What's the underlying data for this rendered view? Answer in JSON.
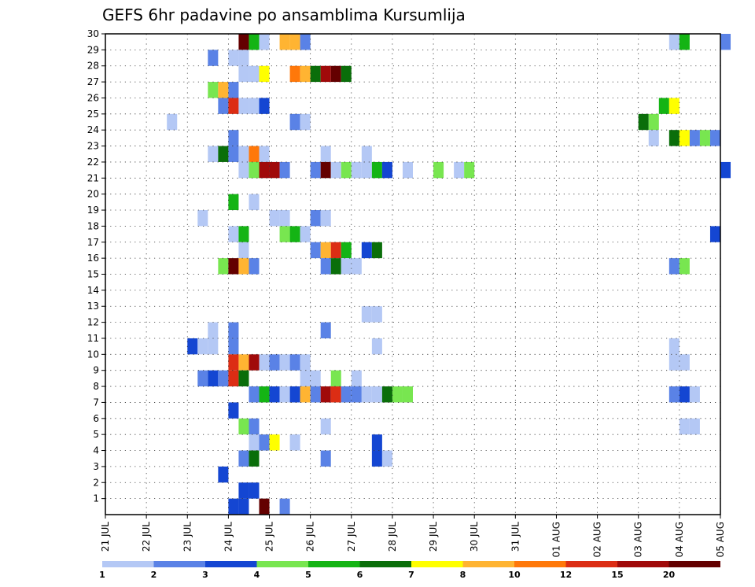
{
  "chart_data": {
    "type": "heatmap",
    "title": "GEFS 6hr padavine po ansamblima Kursumlija",
    "xlabel": "",
    "ylabel": "",
    "x_tick_labels": [
      "21 JUL",
      "22 JUL",
      "23 JUL",
      "24 JUL",
      "25 JUL",
      "26 JUL",
      "27 JUL",
      "28 JUL",
      "29 JUL",
      "30 JUL",
      "31 JUL",
      "01 AUG",
      "02 AUG",
      "03 AUG",
      "04 AUG",
      "05 AUG"
    ],
    "y_tick_labels": [
      "1",
      "2",
      "3",
      "4",
      "5",
      "6",
      "7",
      "8",
      "9",
      "10",
      "11",
      "12",
      "13",
      "14",
      "15",
      "16",
      "17",
      "18",
      "19",
      "20",
      "21",
      "22",
      "23",
      "24",
      "25",
      "26",
      "27",
      "28",
      "29",
      "30"
    ],
    "ylim": [
      0,
      30
    ],
    "x_range_days": [
      0,
      15
    ],
    "grid": "dotted",
    "colorbar": {
      "labels": [
        "1",
        "2",
        "3",
        "4",
        "5",
        "6",
        "7",
        "8",
        "10",
        "12",
        "15",
        "20"
      ],
      "colors": [
        "#b4c8f5",
        "#5a82e6",
        "#1446d2",
        "#78e650",
        "#14b414",
        "#0a6e0a",
        "#ffff00",
        "#ffb432",
        "#ff780a",
        "#dc2d14",
        "#a00a0a",
        "#640000"
      ]
    },
    "cells": [
      {
        "t": 13,
        "m": 29,
        "c": 11
      },
      {
        "t": 14,
        "m": 29,
        "c": 4
      },
      {
        "t": 15,
        "m": 29,
        "c": 0
      },
      {
        "t": 17,
        "m": 29,
        "c": 7
      },
      {
        "t": 18,
        "m": 29,
        "c": 7
      },
      {
        "t": 19,
        "m": 29,
        "c": 1
      },
      {
        "t": 55,
        "m": 29,
        "c": 0
      },
      {
        "t": 56,
        "m": 29,
        "c": 4
      },
      {
        "t": 60,
        "m": 29,
        "c": 1
      },
      {
        "t": 10,
        "m": 28,
        "c": 1
      },
      {
        "t": 12,
        "m": 28,
        "c": 0
      },
      {
        "t": 13,
        "m": 28,
        "c": 0
      },
      {
        "t": 13,
        "m": 27,
        "c": 0
      },
      {
        "t": 14,
        "m": 27,
        "c": 0
      },
      {
        "t": 15,
        "m": 27,
        "c": 6
      },
      {
        "t": 18,
        "m": 27,
        "c": 8
      },
      {
        "t": 19,
        "m": 27,
        "c": 7
      },
      {
        "t": 20,
        "m": 27,
        "c": 5
      },
      {
        "t": 21,
        "m": 27,
        "c": 10
      },
      {
        "t": 22,
        "m": 27,
        "c": 11
      },
      {
        "t": 23,
        "m": 27,
        "c": 5
      },
      {
        "t": 10,
        "m": 26,
        "c": 3
      },
      {
        "t": 11,
        "m": 26,
        "c": 7
      },
      {
        "t": 12,
        "m": 26,
        "c": 1
      },
      {
        "t": 11,
        "m": 25,
        "c": 1
      },
      {
        "t": 12,
        "m": 25,
        "c": 9
      },
      {
        "t": 13,
        "m": 25,
        "c": 0
      },
      {
        "t": 14,
        "m": 25,
        "c": 0
      },
      {
        "t": 15,
        "m": 25,
        "c": 2
      },
      {
        "t": 54,
        "m": 25,
        "c": 4
      },
      {
        "t": 55,
        "m": 25,
        "c": 6
      },
      {
        "t": 6,
        "m": 24,
        "c": 0
      },
      {
        "t": 18,
        "m": 24,
        "c": 1
      },
      {
        "t": 19,
        "m": 24,
        "c": 0
      },
      {
        "t": 52,
        "m": 24,
        "c": 5
      },
      {
        "t": 53,
        "m": 24,
        "c": 3
      },
      {
        "t": 12,
        "m": 23,
        "c": 1
      },
      {
        "t": 53,
        "m": 23,
        "c": 0
      },
      {
        "t": 55,
        "m": 23,
        "c": 5
      },
      {
        "t": 56,
        "m": 23,
        "c": 6
      },
      {
        "t": 57,
        "m": 23,
        "c": 1
      },
      {
        "t": 58,
        "m": 23,
        "c": 3
      },
      {
        "t": 59,
        "m": 23,
        "c": 1
      },
      {
        "t": 10,
        "m": 22,
        "c": 0
      },
      {
        "t": 11,
        "m": 22,
        "c": 5
      },
      {
        "t": 12,
        "m": 22,
        "c": 1
      },
      {
        "t": 13,
        "m": 22,
        "c": 0
      },
      {
        "t": 14,
        "m": 22,
        "c": 8
      },
      {
        "t": 15,
        "m": 22,
        "c": 0
      },
      {
        "t": 21,
        "m": 22,
        "c": 0
      },
      {
        "t": 25,
        "m": 22,
        "c": 0
      },
      {
        "t": 13,
        "m": 21,
        "c": 0
      },
      {
        "t": 14,
        "m": 21,
        "c": 3
      },
      {
        "t": 15,
        "m": 21,
        "c": 10
      },
      {
        "t": 16,
        "m": 21,
        "c": 10
      },
      {
        "t": 17,
        "m": 21,
        "c": 1
      },
      {
        "t": 20,
        "m": 21,
        "c": 1
      },
      {
        "t": 21,
        "m": 21,
        "c": 11
      },
      {
        "t": 22,
        "m": 21,
        "c": 0
      },
      {
        "t": 23,
        "m": 21,
        "c": 3
      },
      {
        "t": 24,
        "m": 21,
        "c": 0
      },
      {
        "t": 25,
        "m": 21,
        "c": 0
      },
      {
        "t": 26,
        "m": 21,
        "c": 4
      },
      {
        "t": 27,
        "m": 21,
        "c": 2
      },
      {
        "t": 29,
        "m": 21,
        "c": 0
      },
      {
        "t": 32,
        "m": 21,
        "c": 3
      },
      {
        "t": 34,
        "m": 21,
        "c": 0
      },
      {
        "t": 35,
        "m": 21,
        "c": 3
      },
      {
        "t": 60,
        "m": 21,
        "c": 2
      },
      {
        "t": 12,
        "m": 19,
        "c": 4
      },
      {
        "t": 14,
        "m": 19,
        "c": 0
      },
      {
        "t": 16,
        "m": 18,
        "c": 0
      },
      {
        "t": 17,
        "m": 18,
        "c": 0
      },
      {
        "t": 9,
        "m": 18,
        "c": 0
      },
      {
        "t": 20,
        "m": 18,
        "c": 1
      },
      {
        "t": 21,
        "m": 18,
        "c": 0
      },
      {
        "t": 12,
        "m": 17,
        "c": 0
      },
      {
        "t": 13,
        "m": 17,
        "c": 4
      },
      {
        "t": 17,
        "m": 17,
        "c": 3
      },
      {
        "t": 18,
        "m": 17,
        "c": 4
      },
      {
        "t": 19,
        "m": 17,
        "c": 0
      },
      {
        "t": 59,
        "m": 17,
        "c": 2
      },
      {
        "t": 13,
        "m": 16,
        "c": 0
      },
      {
        "t": 20,
        "m": 16,
        "c": 1
      },
      {
        "t": 21,
        "m": 16,
        "c": 7
      },
      {
        "t": 22,
        "m": 16,
        "c": 9
      },
      {
        "t": 23,
        "m": 16,
        "c": 4
      },
      {
        "t": 25,
        "m": 16,
        "c": 2
      },
      {
        "t": 26,
        "m": 16,
        "c": 5
      },
      {
        "t": 11,
        "m": 15,
        "c": 3
      },
      {
        "t": 12,
        "m": 15,
        "c": 11
      },
      {
        "t": 13,
        "m": 15,
        "c": 7
      },
      {
        "t": 14,
        "m": 15,
        "c": 1
      },
      {
        "t": 21,
        "m": 15,
        "c": 1
      },
      {
        "t": 22,
        "m": 15,
        "c": 5
      },
      {
        "t": 23,
        "m": 15,
        "c": 0
      },
      {
        "t": 24,
        "m": 15,
        "c": 0
      },
      {
        "t": 55,
        "m": 15,
        "c": 1
      },
      {
        "t": 56,
        "m": 15,
        "c": 3
      },
      {
        "t": 25,
        "m": 12,
        "c": 0
      },
      {
        "t": 26,
        "m": 12,
        "c": 0
      },
      {
        "t": 10,
        "m": 11,
        "c": 0
      },
      {
        "t": 12,
        "m": 11,
        "c": 1
      },
      {
        "t": 21,
        "m": 11,
        "c": 1
      },
      {
        "t": 8,
        "m": 10,
        "c": 2
      },
      {
        "t": 9,
        "m": 10,
        "c": 0
      },
      {
        "t": 10,
        "m": 10,
        "c": 0
      },
      {
        "t": 12,
        "m": 10,
        "c": 1
      },
      {
        "t": 26,
        "m": 10,
        "c": 0
      },
      {
        "t": 55,
        "m": 10,
        "c": 0
      },
      {
        "t": 12,
        "m": 9,
        "c": 9
      },
      {
        "t": 13,
        "m": 9,
        "c": 7
      },
      {
        "t": 14,
        "m": 9,
        "c": 10
      },
      {
        "t": 15,
        "m": 9,
        "c": 0
      },
      {
        "t": 16,
        "m": 9,
        "c": 1
      },
      {
        "t": 17,
        "m": 9,
        "c": 0
      },
      {
        "t": 18,
        "m": 9,
        "c": 1
      },
      {
        "t": 19,
        "m": 9,
        "c": 0
      },
      {
        "t": 55,
        "m": 9,
        "c": 0
      },
      {
        "t": 56,
        "m": 9,
        "c": 0
      },
      {
        "t": 9,
        "m": 8,
        "c": 1
      },
      {
        "t": 10,
        "m": 8,
        "c": 2
      },
      {
        "t": 11,
        "m": 8,
        "c": 1
      },
      {
        "t": 12,
        "m": 8,
        "c": 9
      },
      {
        "t": 13,
        "m": 8,
        "c": 5
      },
      {
        "t": 19,
        "m": 8,
        "c": 0
      },
      {
        "t": 20,
        "m": 8,
        "c": 0
      },
      {
        "t": 22,
        "m": 8,
        "c": 3
      },
      {
        "t": 24,
        "m": 8,
        "c": 0
      },
      {
        "t": 14,
        "m": 7,
        "c": 1
      },
      {
        "t": 15,
        "m": 7,
        "c": 4
      },
      {
        "t": 16,
        "m": 7,
        "c": 2
      },
      {
        "t": 17,
        "m": 7,
        "c": 0
      },
      {
        "t": 18,
        "m": 7,
        "c": 2
      },
      {
        "t": 19,
        "m": 7,
        "c": 7
      },
      {
        "t": 20,
        "m": 7,
        "c": 1
      },
      {
        "t": 21,
        "m": 7,
        "c": 10
      },
      {
        "t": 22,
        "m": 7,
        "c": 9
      },
      {
        "t": 23,
        "m": 7,
        "c": 1
      },
      {
        "t": 24,
        "m": 7,
        "c": 1
      },
      {
        "t": 25,
        "m": 7,
        "c": 0
      },
      {
        "t": 26,
        "m": 7,
        "c": 0
      },
      {
        "t": 27,
        "m": 7,
        "c": 5
      },
      {
        "t": 28,
        "m": 7,
        "c": 3
      },
      {
        "t": 29,
        "m": 7,
        "c": 3
      },
      {
        "t": 55,
        "m": 7,
        "c": 1
      },
      {
        "t": 56,
        "m": 7,
        "c": 2
      },
      {
        "t": 57,
        "m": 7,
        "c": 0
      },
      {
        "t": 12,
        "m": 6,
        "c": 2
      },
      {
        "t": 13,
        "m": 5,
        "c": 3
      },
      {
        "t": 14,
        "m": 5,
        "c": 1
      },
      {
        "t": 21,
        "m": 5,
        "c": 0
      },
      {
        "t": 56,
        "m": 5,
        "c": 0
      },
      {
        "t": 57,
        "m": 5,
        "c": 0
      },
      {
        "t": 14,
        "m": 4,
        "c": 0
      },
      {
        "t": 15,
        "m": 4,
        "c": 1
      },
      {
        "t": 16,
        "m": 4,
        "c": 6
      },
      {
        "t": 18,
        "m": 4,
        "c": 0
      },
      {
        "t": 26,
        "m": 4,
        "c": 2
      },
      {
        "t": 13,
        "m": 3,
        "c": 1
      },
      {
        "t": 14,
        "m": 3,
        "c": 5
      },
      {
        "t": 21,
        "m": 3,
        "c": 1
      },
      {
        "t": 26,
        "m": 3,
        "c": 2
      },
      {
        "t": 27,
        "m": 3,
        "c": 0
      },
      {
        "t": 11,
        "m": 2,
        "c": 2
      },
      {
        "t": 13,
        "m": 1,
        "c": 2
      },
      {
        "t": 14,
        "m": 1,
        "c": 2
      },
      {
        "t": 12,
        "m": 0,
        "c": 2
      },
      {
        "t": 13,
        "m": 0,
        "c": 2
      },
      {
        "t": 15,
        "m": 0,
        "c": 11
      },
      {
        "t": 17,
        "m": 0,
        "c": 1
      }
    ]
  }
}
